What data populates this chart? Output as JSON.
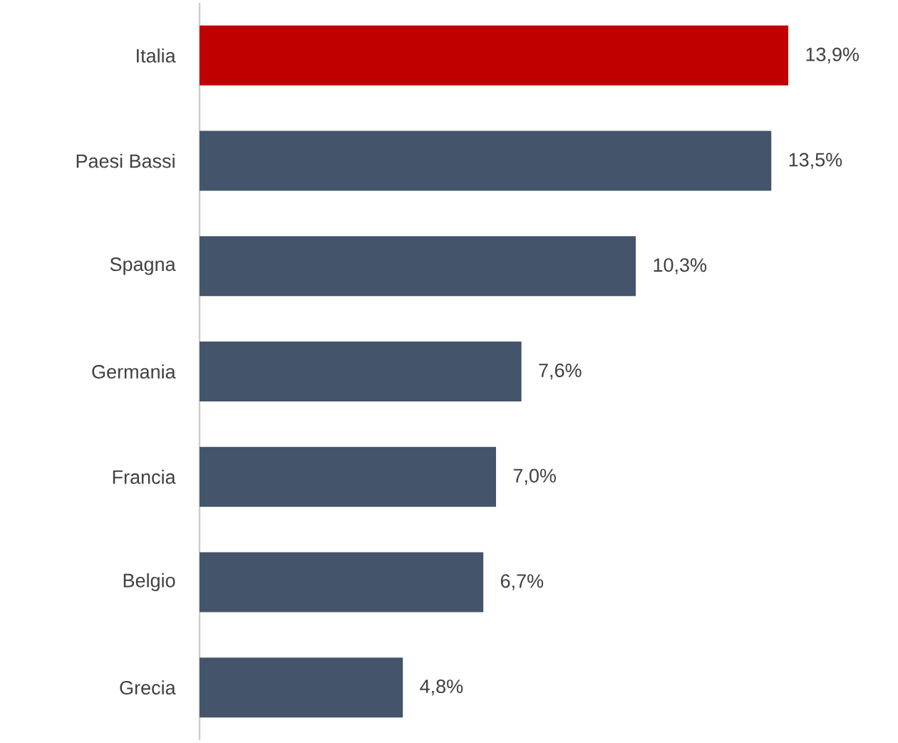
{
  "chart_data": {
    "type": "bar",
    "orientation": "horizontal",
    "categories": [
      "Italia",
      "Paesi Bassi",
      "Spagna",
      "Germania",
      "Francia",
      "Belgio",
      "Grecia"
    ],
    "values": [
      13.9,
      13.5,
      10.3,
      7.6,
      7.0,
      6.7,
      4.8
    ],
    "value_labels": [
      "13,9%",
      "13,5%",
      "10,3%",
      "7,6%",
      "7,0%",
      "6,7%",
      "4,8%"
    ],
    "colors": [
      "#c00000",
      "#44546a",
      "#44546a",
      "#44546a",
      "#44546a",
      "#44546a",
      "#44546a"
    ],
    "data_labels": false
  }
}
